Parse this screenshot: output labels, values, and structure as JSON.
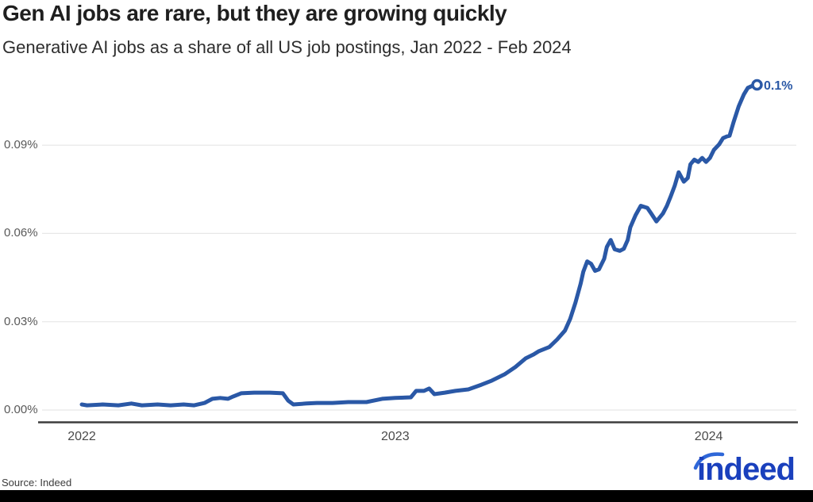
{
  "chart_data": {
    "type": "line",
    "title": "Gen AI jobs are rare, but they are growing quickly",
    "subtitle": "Generative AI jobs as a share of all US job postings, Jan 2022 - Feb 2024",
    "source": "Source: Indeed",
    "xlabel": "",
    "ylabel": "",
    "ylim": [
      0,
      0.115
    ],
    "grid": "horizontal",
    "legend": "none",
    "x_unit": "months since Jan 2022",
    "x_ticks": [
      {
        "label": "2022",
        "month": 0
      },
      {
        "label": "2023",
        "month": 12
      },
      {
        "label": "2024",
        "month": 24
      }
    ],
    "y_ticks": [
      {
        "label": "0.00%",
        "value": 0.0
      },
      {
        "label": "0.03%",
        "value": 0.03
      },
      {
        "label": "0.06%",
        "value": 0.06
      },
      {
        "label": "0.09%",
        "value": 0.09
      }
    ],
    "series": [
      {
        "name": "Generative AI share of US job postings",
        "color": "#2a58a6",
        "end_label": "0.1%",
        "end_value": 0.11,
        "points": [
          [
            0,
            0.0019
          ],
          [
            0.2,
            0.0016
          ],
          [
            0.8,
            0.0019
          ],
          [
            1.4,
            0.0016
          ],
          [
            1.9,
            0.0022
          ],
          [
            2.3,
            0.0016
          ],
          [
            2.9,
            0.0019
          ],
          [
            3.4,
            0.0016
          ],
          [
            3.9,
            0.0019
          ],
          [
            4.3,
            0.0016
          ],
          [
            4.7,
            0.0024
          ],
          [
            5.0,
            0.0038
          ],
          [
            5.3,
            0.0041
          ],
          [
            5.6,
            0.0038
          ],
          [
            5.8,
            0.0046
          ],
          [
            6.1,
            0.0057
          ],
          [
            6.6,
            0.0059
          ],
          [
            7.2,
            0.0059
          ],
          [
            7.7,
            0.0057
          ],
          [
            7.9,
            0.0032
          ],
          [
            8.1,
            0.0019
          ],
          [
            8.6,
            0.0022
          ],
          [
            9.0,
            0.0024
          ],
          [
            9.6,
            0.0024
          ],
          [
            10.2,
            0.0027
          ],
          [
            10.9,
            0.0027
          ],
          [
            11.5,
            0.0038
          ],
          [
            12.0,
            0.0041
          ],
          [
            12.6,
            0.0043
          ],
          [
            12.8,
            0.0065
          ],
          [
            13.1,
            0.0065
          ],
          [
            13.3,
            0.0073
          ],
          [
            13.5,
            0.0054
          ],
          [
            13.9,
            0.0059
          ],
          [
            14.3,
            0.0065
          ],
          [
            14.8,
            0.007
          ],
          [
            15.3,
            0.0086
          ],
          [
            15.7,
            0.01
          ],
          [
            16.2,
            0.0122
          ],
          [
            16.6,
            0.0146
          ],
          [
            17.0,
            0.0176
          ],
          [
            17.3,
            0.0189
          ],
          [
            17.5,
            0.02
          ],
          [
            17.9,
            0.0214
          ],
          [
            18.2,
            0.024
          ],
          [
            18.5,
            0.027
          ],
          [
            18.7,
            0.031
          ],
          [
            18.9,
            0.0365
          ],
          [
            19.1,
            0.043
          ],
          [
            19.2,
            0.047
          ],
          [
            19.35,
            0.0505
          ],
          [
            19.5,
            0.0497
          ],
          [
            19.65,
            0.0473
          ],
          [
            19.8,
            0.0478
          ],
          [
            20.0,
            0.0514
          ],
          [
            20.1,
            0.0554
          ],
          [
            20.25,
            0.0578
          ],
          [
            20.4,
            0.0546
          ],
          [
            20.6,
            0.0541
          ],
          [
            20.75,
            0.0548
          ],
          [
            20.9,
            0.0578
          ],
          [
            21.0,
            0.0621
          ],
          [
            21.2,
            0.0662
          ],
          [
            21.4,
            0.0694
          ],
          [
            21.65,
            0.0687
          ],
          [
            21.8,
            0.0668
          ],
          [
            22.0,
            0.0641
          ],
          [
            22.25,
            0.0668
          ],
          [
            22.4,
            0.0694
          ],
          [
            22.55,
            0.0727
          ],
          [
            22.7,
            0.0762
          ],
          [
            22.85,
            0.0808
          ],
          [
            23.05,
            0.0776
          ],
          [
            23.2,
            0.0789
          ],
          [
            23.3,
            0.0835
          ],
          [
            23.45,
            0.0851
          ],
          [
            23.6,
            0.0843
          ],
          [
            23.75,
            0.0857
          ],
          [
            23.9,
            0.0843
          ],
          [
            24.05,
            0.0857
          ],
          [
            24.2,
            0.0884
          ],
          [
            24.4,
            0.0903
          ],
          [
            24.55,
            0.0924
          ],
          [
            24.7,
            0.093
          ],
          [
            24.8,
            0.0932
          ],
          [
            24.95,
            0.0978
          ],
          [
            25.15,
            0.1032
          ],
          [
            25.35,
            0.1073
          ],
          [
            25.5,
            0.1095
          ],
          [
            25.7,
            0.1103
          ],
          [
            25.85,
            0.1105
          ]
        ]
      }
    ]
  },
  "brand": {
    "logo_text": "indeed",
    "logo_color": "#1a40bd",
    "logo_arc_color": "#2f67d8"
  }
}
